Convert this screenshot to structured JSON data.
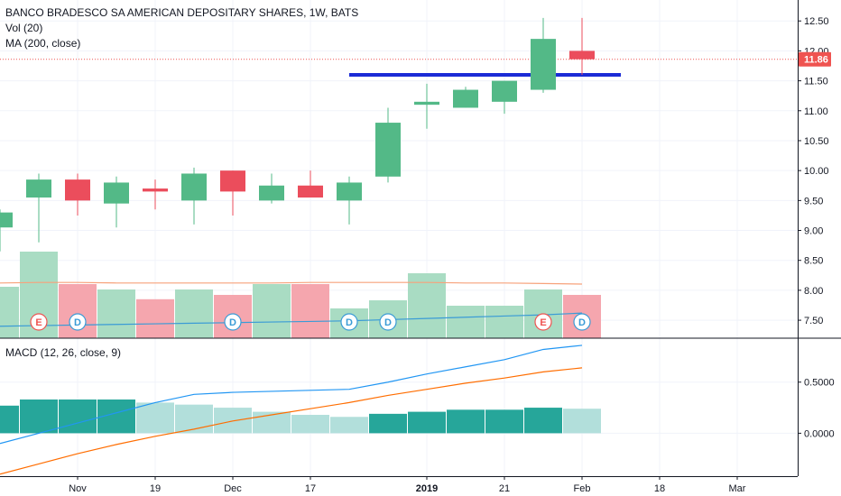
{
  "chart_data": [
    {
      "type": "candlestick",
      "title": "BANCO BRADESCO SA AMERICAN DEPOSITARY SHARES, 1W, BATS",
      "symbol_interval": "1W",
      "exchange": "BATS",
      "y_ticks": [
        "12.50",
        "12.00",
        "11.50",
        "11.00",
        "10.50",
        "10.00",
        "9.50",
        "9.00",
        "8.50",
        "8.00",
        "7.50"
      ],
      "ylim": [
        7.2,
        12.85
      ],
      "last_price_label": "11.86",
      "last_price": 11.86,
      "resistance_level": 11.6,
      "candles": [
        {
          "o": 9.05,
          "h": 9.35,
          "l": 8.65,
          "c": 9.3
        },
        {
          "o": 9.55,
          "h": 9.95,
          "l": 8.8,
          "c": 9.85
        },
        {
          "o": 9.85,
          "h": 9.95,
          "l": 9.25,
          "c": 9.5
        },
        {
          "o": 9.45,
          "h": 9.9,
          "l": 9.05,
          "c": 9.8
        },
        {
          "o": 9.7,
          "h": 9.85,
          "l": 9.35,
          "c": 9.65
        },
        {
          "o": 9.5,
          "h": 10.05,
          "l": 9.1,
          "c": 9.95
        },
        {
          "o": 10.0,
          "h": 10.0,
          "l": 9.25,
          "c": 9.65
        },
        {
          "o": 9.5,
          "h": 9.95,
          "l": 9.45,
          "c": 9.75
        },
        {
          "o": 9.75,
          "h": 10.0,
          "l": 9.55,
          "c": 9.55
        },
        {
          "o": 9.5,
          "h": 9.9,
          "l": 9.1,
          "c": 9.8
        },
        {
          "o": 9.9,
          "h": 11.05,
          "l": 9.8,
          "c": 10.8
        },
        {
          "o": 11.1,
          "h": 11.45,
          "l": 10.7,
          "c": 11.15
        },
        {
          "o": 11.05,
          "h": 11.4,
          "l": 11.05,
          "c": 11.35
        },
        {
          "o": 11.15,
          "h": 11.5,
          "l": 10.95,
          "c": 11.5
        },
        {
          "o": 11.35,
          "h": 12.55,
          "l": 11.3,
          "c": 12.2
        },
        {
          "o": 12.0,
          "h": 12.55,
          "l": 11.6,
          "c": 11.86
        }
      ],
      "volume": [
        0.95,
        1.6,
        1.0,
        0.9,
        0.72,
        0.9,
        0.8,
        1.0,
        1.0,
        0.55,
        0.7,
        1.2,
        0.6,
        0.6,
        0.9,
        0.8
      ],
      "volume_ma20": [
        1.02,
        1.03,
        1.03,
        1.02,
        1.02,
        1.02,
        1.02,
        1.02,
        1.03,
        1.03,
        1.03,
        1.03,
        1.02,
        1.02,
        1.01,
        1.0
      ],
      "ma200": [
        7.4,
        7.41,
        7.42,
        7.43,
        7.44,
        7.45,
        7.46,
        7.47,
        7.48,
        7.49,
        7.51,
        7.53,
        7.55,
        7.57,
        7.59,
        7.62
      ],
      "events": [
        {
          "idx": 1,
          "label": "E"
        },
        {
          "idx": 2,
          "label": "D"
        },
        {
          "idx": 6,
          "label": "D"
        },
        {
          "idx": 9,
          "label": "D"
        },
        {
          "idx": 10,
          "label": "D"
        },
        {
          "idx": 14,
          "label": "E"
        },
        {
          "idx": 15,
          "label": "D"
        }
      ],
      "x_ticks": [
        {
          "label": "Nov",
          "pos": 2.0
        },
        {
          "label": "19",
          "pos": 4.0
        },
        {
          "label": "Dec",
          "pos": 6.0
        },
        {
          "label": "17",
          "pos": 8.0
        },
        {
          "label": "2019",
          "pos": 11.0
        },
        {
          "label": "21",
          "pos": 13.0
        },
        {
          "label": "Feb",
          "pos": 15.0
        },
        {
          "label": "18",
          "pos": 17.0
        },
        {
          "label": "Mar",
          "pos": 19.0
        }
      ],
      "legend": [
        "Vol (20)",
        "MA (200, close)"
      ]
    },
    {
      "type": "macd",
      "title": "MACD (12, 26, close, 9)",
      "y_ticks": [
        "0.5000",
        "0.0000"
      ],
      "ylim": [
        -0.42,
        0.93
      ],
      "macd": [
        -0.1,
        0.0,
        0.1,
        0.2,
        0.3,
        0.38,
        0.4,
        0.41,
        0.42,
        0.43,
        0.5,
        0.58,
        0.65,
        0.72,
        0.82,
        0.86
      ],
      "signal": [
        -0.4,
        -0.3,
        -0.2,
        -0.11,
        -0.03,
        0.04,
        0.12,
        0.18,
        0.24,
        0.3,
        0.37,
        0.43,
        0.49,
        0.54,
        0.6,
        0.64
      ],
      "histogram": [
        0.27,
        0.33,
        0.33,
        0.33,
        0.3,
        0.28,
        0.25,
        0.21,
        0.18,
        0.16,
        0.19,
        0.21,
        0.23,
        0.23,
        0.25,
        0.24
      ]
    }
  ]
}
